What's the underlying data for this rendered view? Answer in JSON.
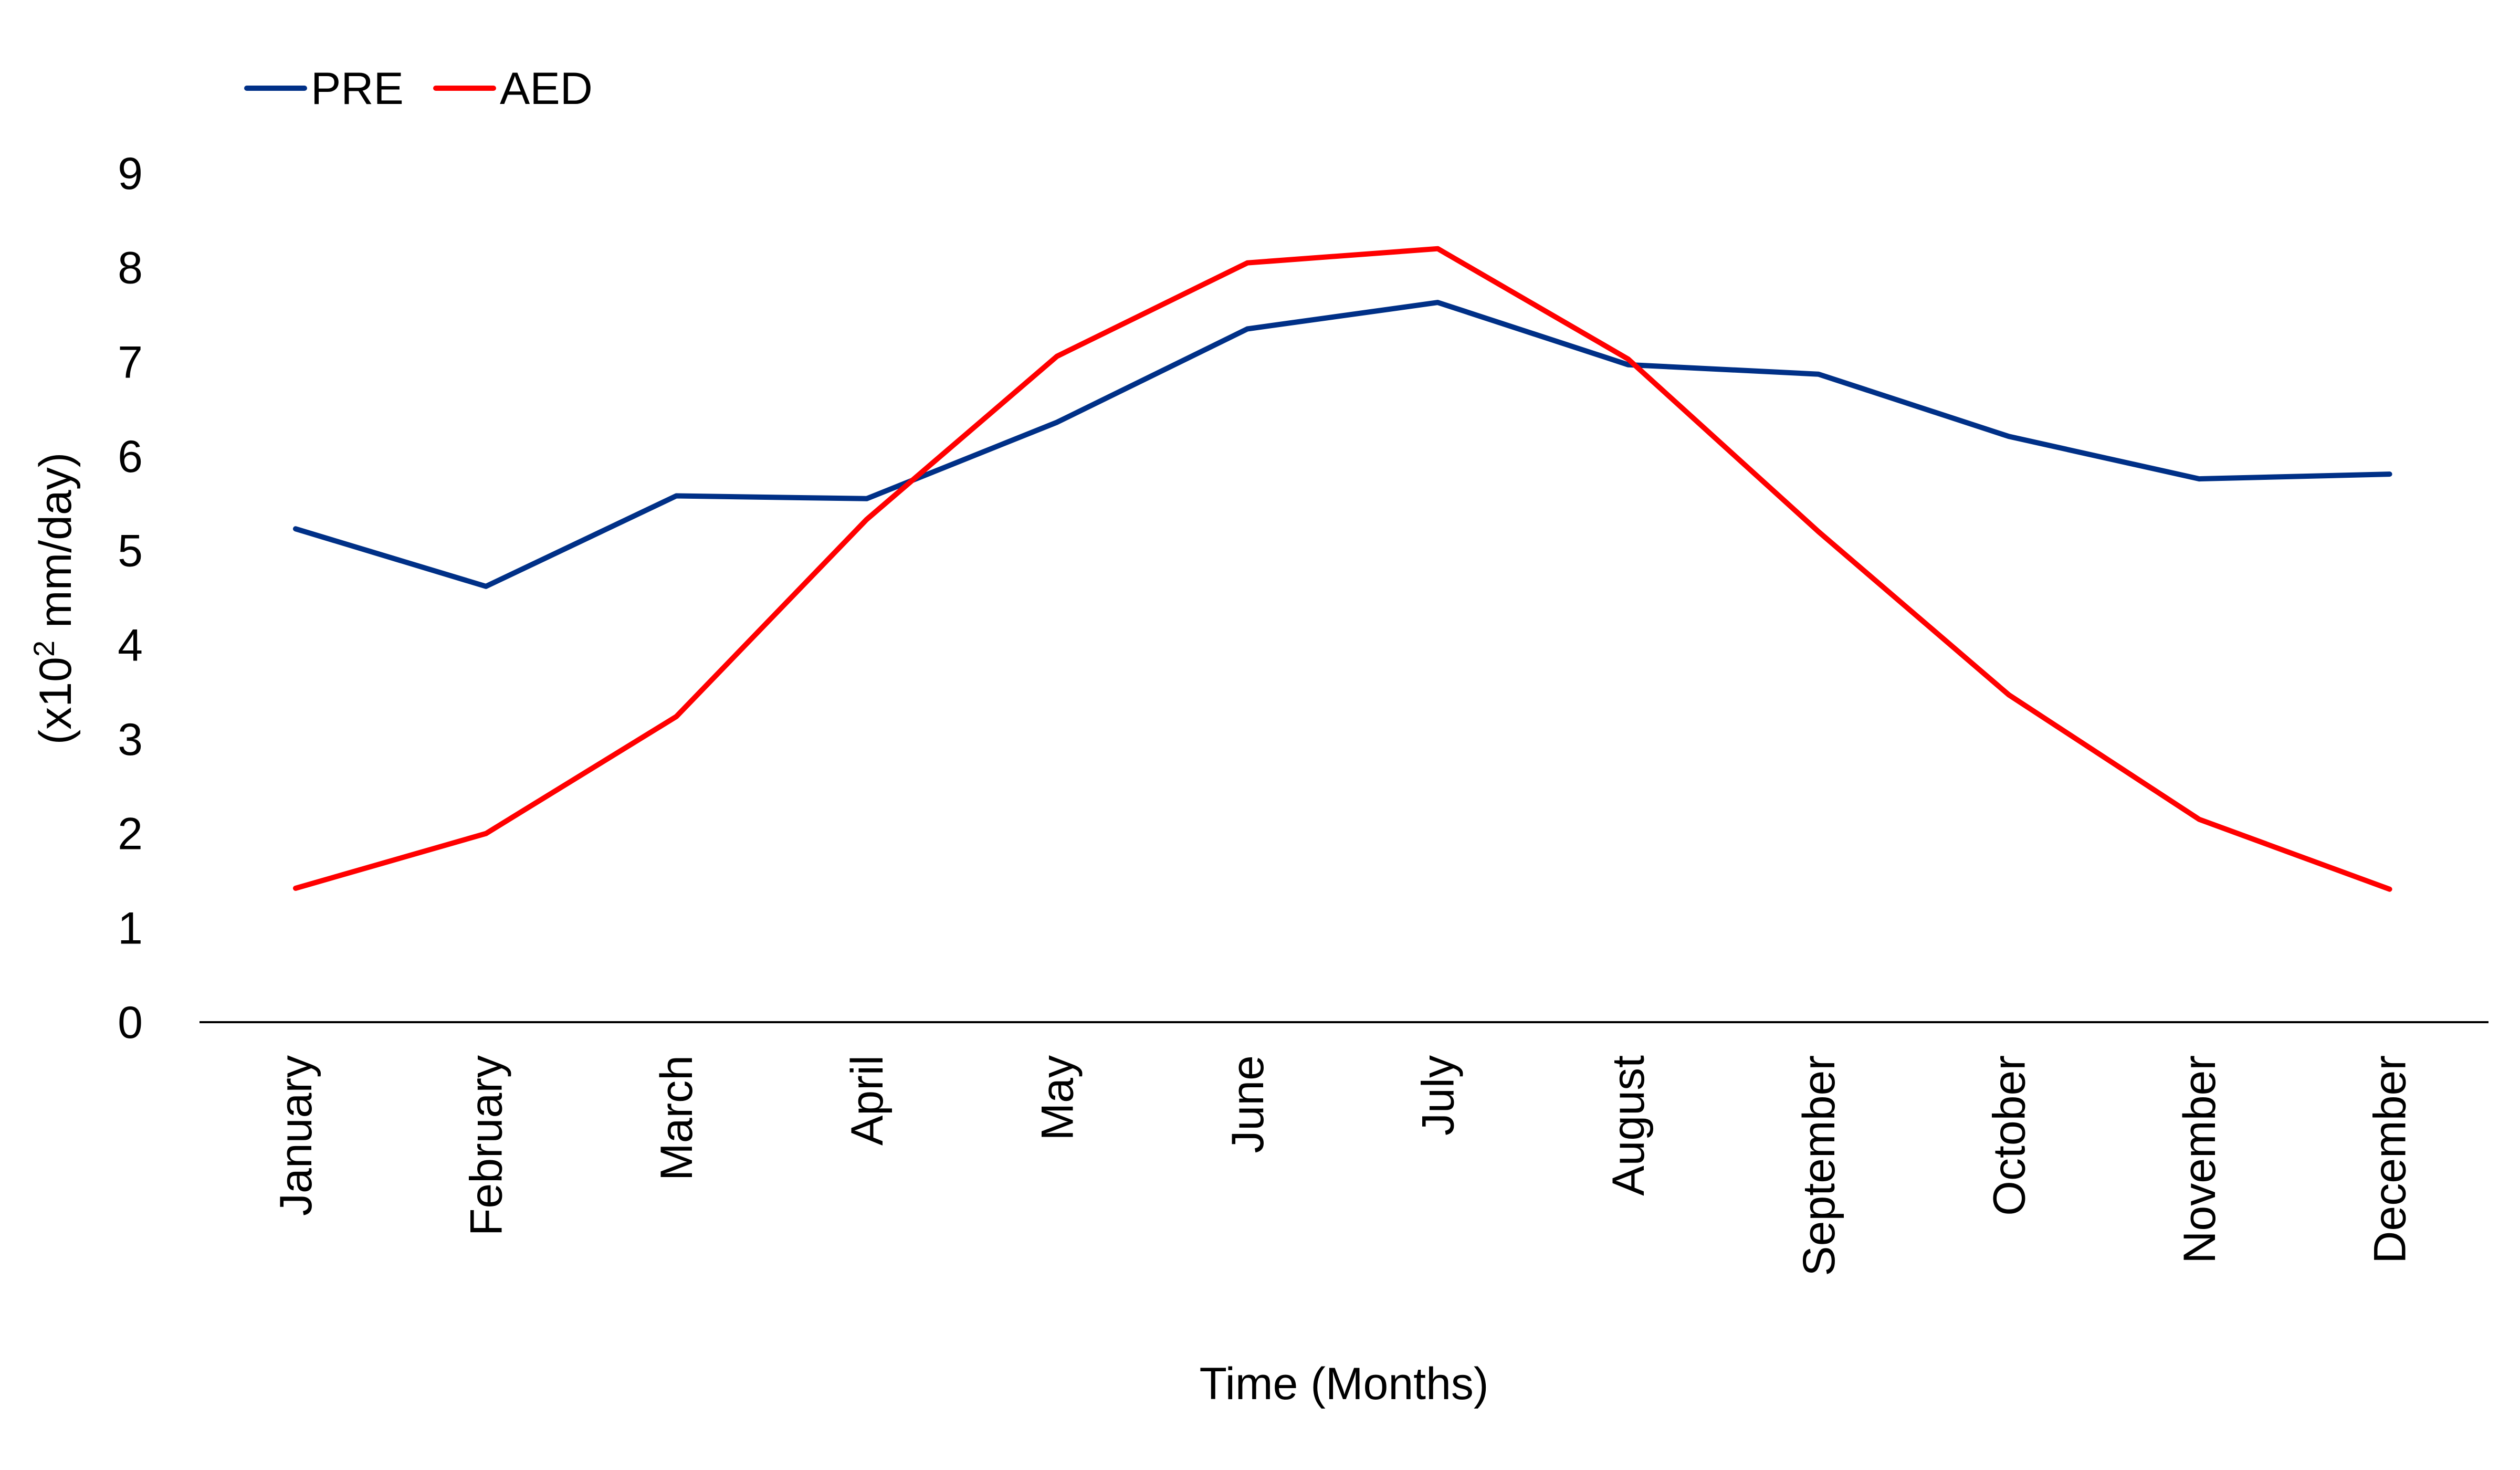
{
  "chart_data": {
    "type": "line",
    "title": "",
    "xlabel": "Time (Months)",
    "ylabel_prefix": "(x10",
    "ylabel_sup": "2",
    "ylabel_suffix": " mm/day)",
    "ylim": [
      0,
      9
    ],
    "yticks": [
      "0",
      "1",
      "2",
      "3",
      "4",
      "5",
      "6",
      "7",
      "8",
      "9"
    ],
    "grid": false,
    "legend_position": "top-left",
    "categories": [
      "January",
      "February",
      "March",
      "April",
      "May",
      "June",
      "July",
      "August",
      "September",
      "October",
      "November",
      "December"
    ],
    "series": [
      {
        "name": "PRE",
        "color": "#003087",
        "values": [
          5.23,
          4.62,
          5.58,
          5.55,
          6.36,
          7.35,
          7.63,
          6.97,
          6.87,
          6.21,
          5.76,
          5.81
        ]
      },
      {
        "name": "AED",
        "color": "#ff0000",
        "values": [
          1.42,
          2.0,
          3.24,
          5.33,
          7.06,
          8.05,
          8.2,
          7.03,
          5.2,
          3.47,
          2.15,
          1.41
        ]
      }
    ]
  }
}
